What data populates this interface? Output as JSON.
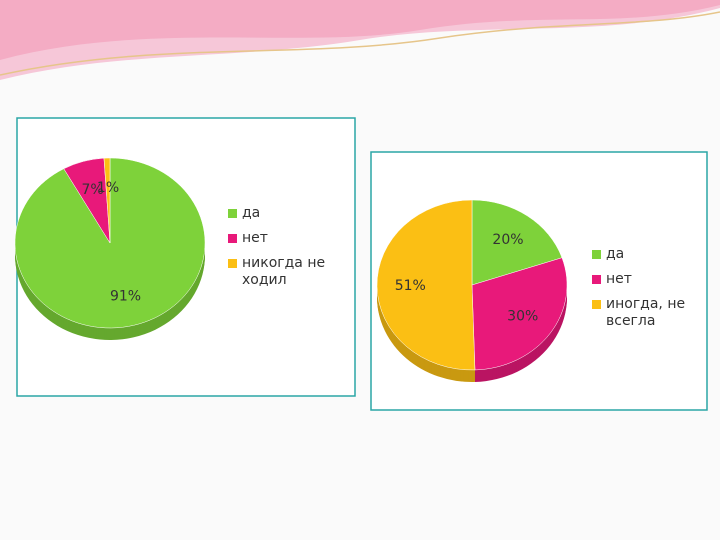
{
  "chart_data": [
    {
      "type": "pie",
      "categories": [
        "да",
        "нет",
        "никогда не ходил"
      ],
      "values": [
        91,
        7,
        1
      ],
      "value_labels": [
        "91%",
        "7%",
        "1%"
      ],
      "colors": [
        "#7ed23a",
        "#e8197a",
        "#fbbf14"
      ]
    },
    {
      "type": "pie",
      "categories": [
        "да",
        "нет",
        "иногда, не всегла"
      ],
      "values": [
        20,
        30,
        51
      ],
      "value_labels": [
        "20%",
        "30%",
        "51%"
      ],
      "colors": [
        "#7ed23a",
        "#e8197a",
        "#fbbf14"
      ]
    }
  ]
}
